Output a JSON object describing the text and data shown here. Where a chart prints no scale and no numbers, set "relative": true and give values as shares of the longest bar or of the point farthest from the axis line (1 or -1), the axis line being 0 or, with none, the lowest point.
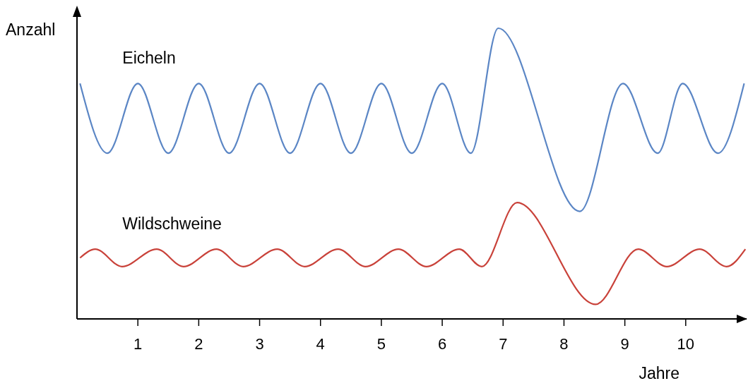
{
  "chart_data": {
    "type": "line",
    "relative": true,
    "ylabel": "Anzahl",
    "xlabel": "Jahre",
    "xlim": [
      0,
      11
    ],
    "xticks": [
      1,
      2,
      3,
      4,
      5,
      6,
      7,
      8,
      9,
      10
    ],
    "grid": false,
    "legend": false,
    "marker": "none",
    "line_style": "solid",
    "tick_labels": "x",
    "series": [
      {
        "name": "Eicheln",
        "color": "#5b86c5",
        "x": [
          0.05,
          0.5,
          1.0,
          1.5,
          2.0,
          2.5,
          3.0,
          3.5,
          4.0,
          4.5,
          5.0,
          5.5,
          6.0,
          6.47,
          6.92,
          8.26,
          8.97,
          9.54,
          9.95,
          10.53,
          10.96
        ],
        "values": [
          0.81,
          0.57,
          0.81,
          0.57,
          0.81,
          0.57,
          0.81,
          0.57,
          0.81,
          0.57,
          0.81,
          0.57,
          0.81,
          0.57,
          1.0,
          0.37,
          0.81,
          0.57,
          0.81,
          0.57,
          0.81
        ]
      },
      {
        "name": "Wildschweine",
        "color": "#c9423a",
        "x": [
          0.05,
          0.3,
          0.74,
          1.31,
          1.75,
          2.29,
          2.73,
          3.29,
          3.74,
          4.29,
          4.74,
          5.28,
          5.74,
          6.28,
          6.65,
          7.23,
          8.52,
          9.22,
          9.69,
          10.23,
          10.67,
          10.98
        ],
        "values": [
          0.21,
          0.24,
          0.18,
          0.24,
          0.18,
          0.24,
          0.18,
          0.24,
          0.18,
          0.24,
          0.18,
          0.24,
          0.18,
          0.24,
          0.18,
          0.4,
          0.05,
          0.24,
          0.18,
          0.24,
          0.18,
          0.24
        ]
      }
    ]
  }
}
